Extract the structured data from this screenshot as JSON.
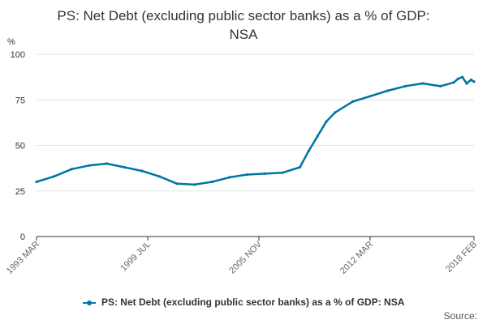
{
  "chart_data": {
    "type": "line",
    "title_lines": [
      "PS: Net Debt (excluding public sector banks) as a % of GDP:",
      "NSA"
    ],
    "ylabel": "%",
    "ylim": [
      0,
      100
    ],
    "y_ticks": [
      "0",
      "25",
      "50",
      "75",
      "100"
    ],
    "x_range": [
      "1993 MAR",
      "2018 FEB"
    ],
    "x_tick_labels": [
      {
        "label": "1993 MAR",
        "date": "1993-03"
      },
      {
        "label": "1999 JUL",
        "date": "1999-07"
      },
      {
        "label": "2005 NOV",
        "date": "2005-11"
      },
      {
        "label": "2012 MAR",
        "date": "2012-03"
      },
      {
        "label": "2018 FEB",
        "date": "2018-02"
      }
    ],
    "grid": true,
    "legend_position": "bottom",
    "color": "#0075a3",
    "series": [
      {
        "name": "PS: Net Debt (excluding public sector banks) as a % of GDP: NSA",
        "x": [
          "1993-03",
          "1994-03",
          "1995-03",
          "1996-03",
          "1997-03",
          "1998-03",
          "1999-03",
          "2000-03",
          "2001-03",
          "2002-03",
          "2003-03",
          "2004-03",
          "2005-03",
          "2006-03",
          "2007-03",
          "2008-03",
          "2008-09",
          "2009-03",
          "2009-09",
          "2010-03",
          "2011-03",
          "2012-03",
          "2013-03",
          "2014-03",
          "2015-03",
          "2016-03",
          "2016-12",
          "2017-03",
          "2017-06",
          "2017-09",
          "2017-12",
          "2018-02"
        ],
        "values": [
          30,
          33,
          37,
          39,
          40,
          38,
          36,
          33,
          29,
          28.5,
          30,
          32.5,
          34,
          34.5,
          35,
          38,
          47,
          55,
          63,
          68,
          74,
          77,
          80,
          82.5,
          84,
          82.5,
          84.5,
          86.5,
          87.5,
          84,
          86,
          85
        ]
      }
    ]
  },
  "legend": {
    "label": "PS: Net Debt (excluding public sector banks) as a % of GDP: NSA"
  },
  "source": {
    "label": "Source:"
  }
}
